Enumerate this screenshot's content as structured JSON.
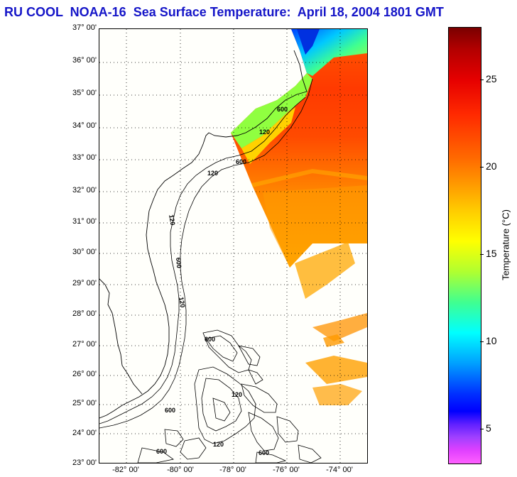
{
  "title": "RU COOL  NOAA-16  Sea Surface Temperature:  April 18, 2004 1801 GMT",
  "map": {
    "latitude_labels": [
      "37° 00'",
      "36° 00'",
      "35° 00'",
      "34° 00'",
      "33° 00'",
      "32° 00'",
      "31° 00'",
      "30° 00'",
      "29° 00'",
      "28° 00'",
      "27° 00'",
      "26° 00'",
      "25° 00'",
      "24° 00'",
      "23° 00'"
    ],
    "longitude_labels": [
      "-82° 00'",
      "-80° 00'",
      "-78° 00'",
      "-76° 00'",
      "-74° 00'"
    ],
    "contour_labels": [
      "120",
      "600",
      "120",
      "600",
      "600",
      "120",
      "120",
      "600",
      "600",
      "120",
      "600",
      "600",
      "120"
    ],
    "land_color": "#fffffb",
    "gridline_style": "dotted"
  },
  "colorbar": {
    "title": "Temperature (°C)",
    "tick_labels": [
      "25",
      "20",
      "15",
      "10",
      "5"
    ],
    "range": [
      3,
      28
    ]
  }
}
